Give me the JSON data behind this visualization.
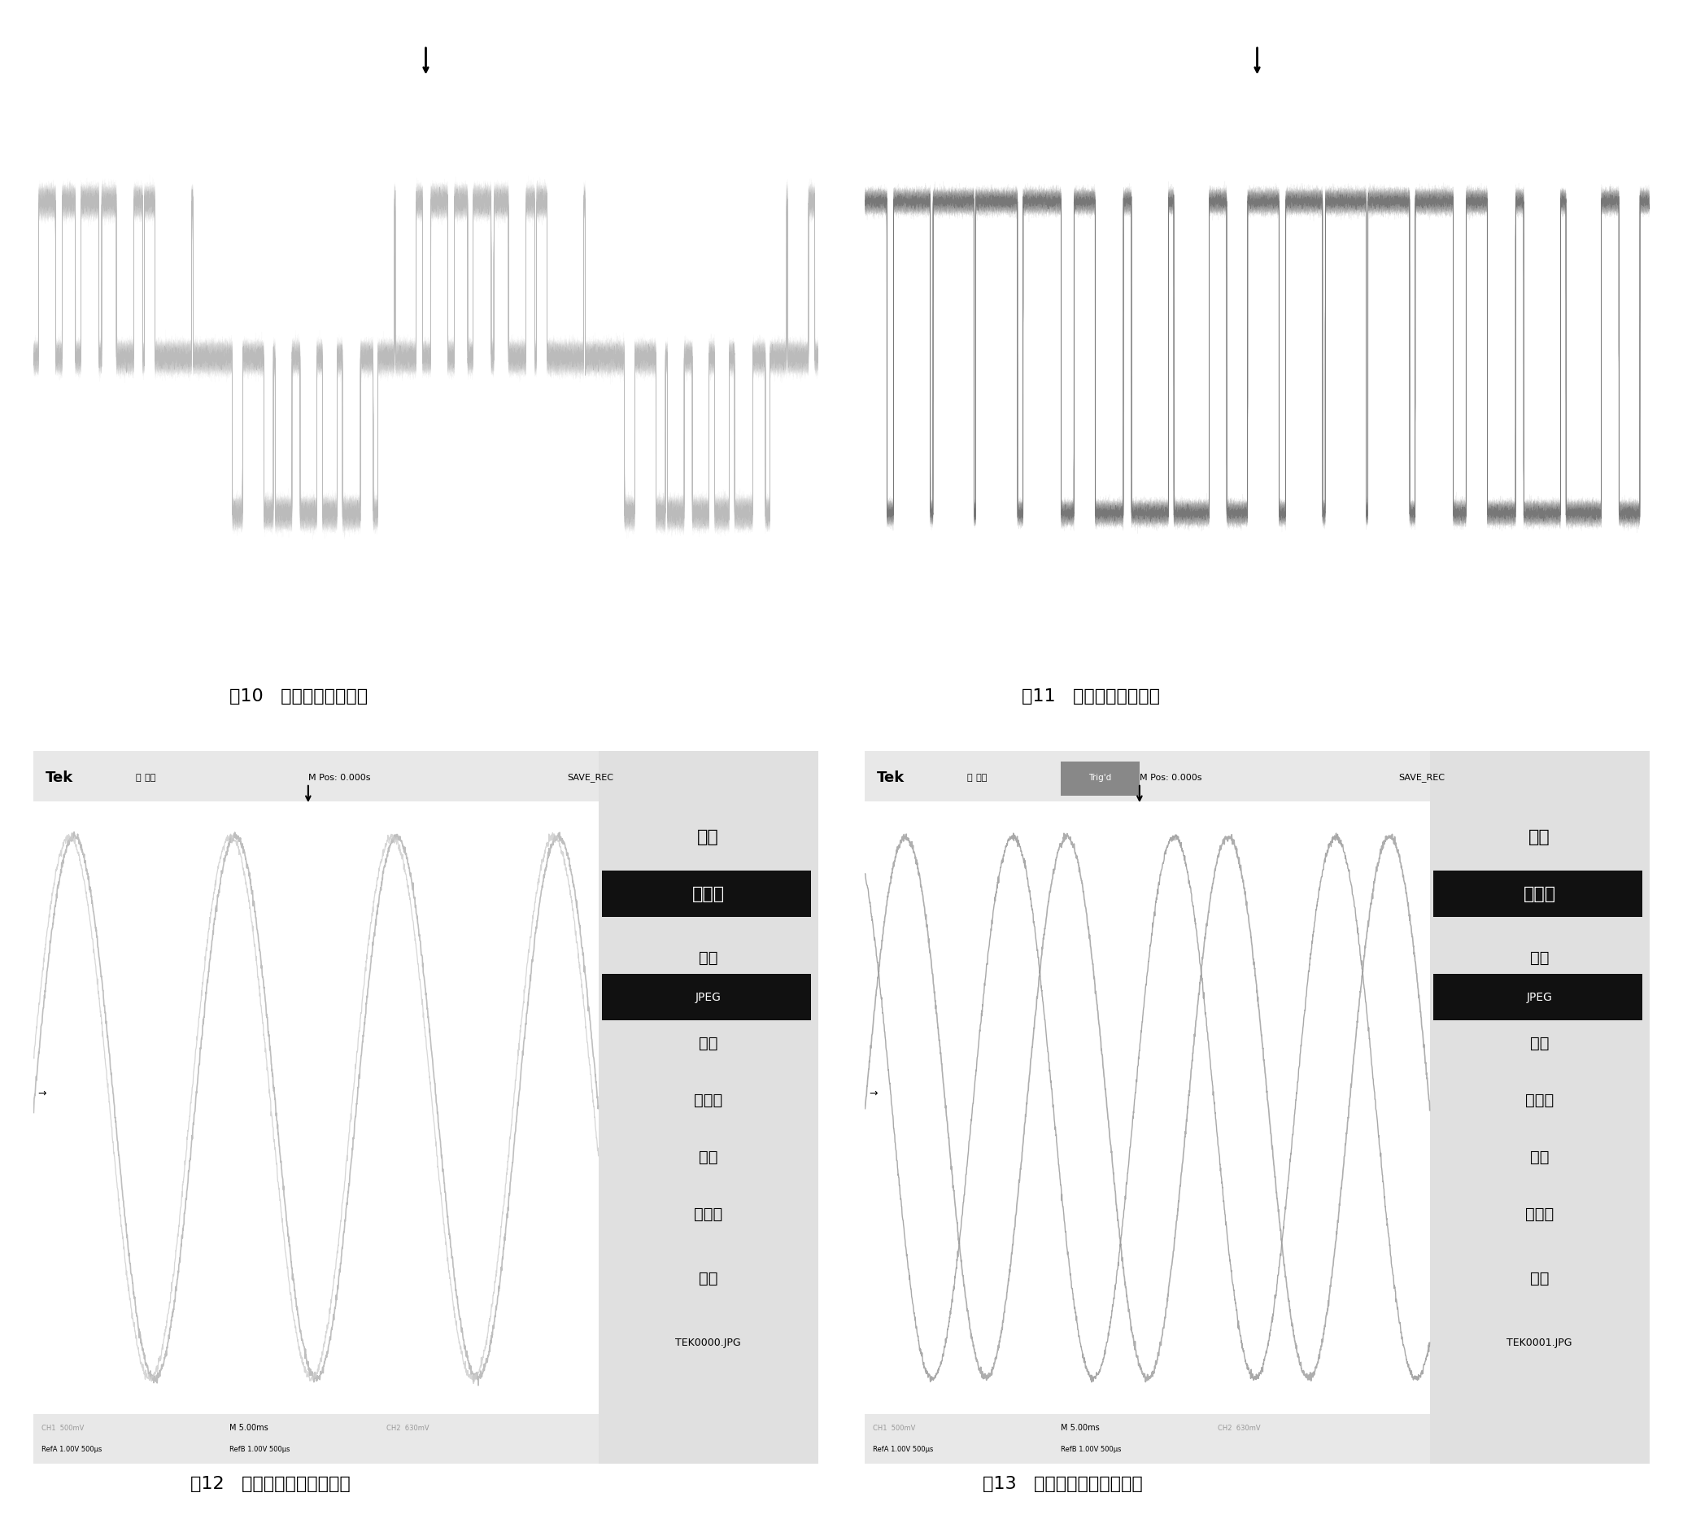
{
  "fig_width": 20.69,
  "fig_height": 18.67,
  "background_color": "#ffffff",
  "caption_fontsize": 16,
  "captions": [
    "图10   滤波前线电压波形",
    "图11   滤波前相电压波形",
    "图12   滤波后的线电压波形图",
    "图13   滤波后的相电压波形图"
  ],
  "menu_items_left": [
    "动作",
    "存图像",
    "格式",
    "JPEG",
    "关于",
    "存图像",
    "选择",
    "文件夹",
    "储存",
    "TEK0000.JPG"
  ],
  "menu_items_right": [
    "动作",
    "存图像",
    "格式",
    "JPEG",
    "关于",
    "存图像",
    "选择",
    "文件夹",
    "储存",
    "TEK0001.JPG"
  ],
  "tek_bg": "#c8c8c8",
  "tek_plot_bg": "#ffffff",
  "tek_menu_bg": "#e0e0e0",
  "top_bar_bg": "#e8e8e8"
}
